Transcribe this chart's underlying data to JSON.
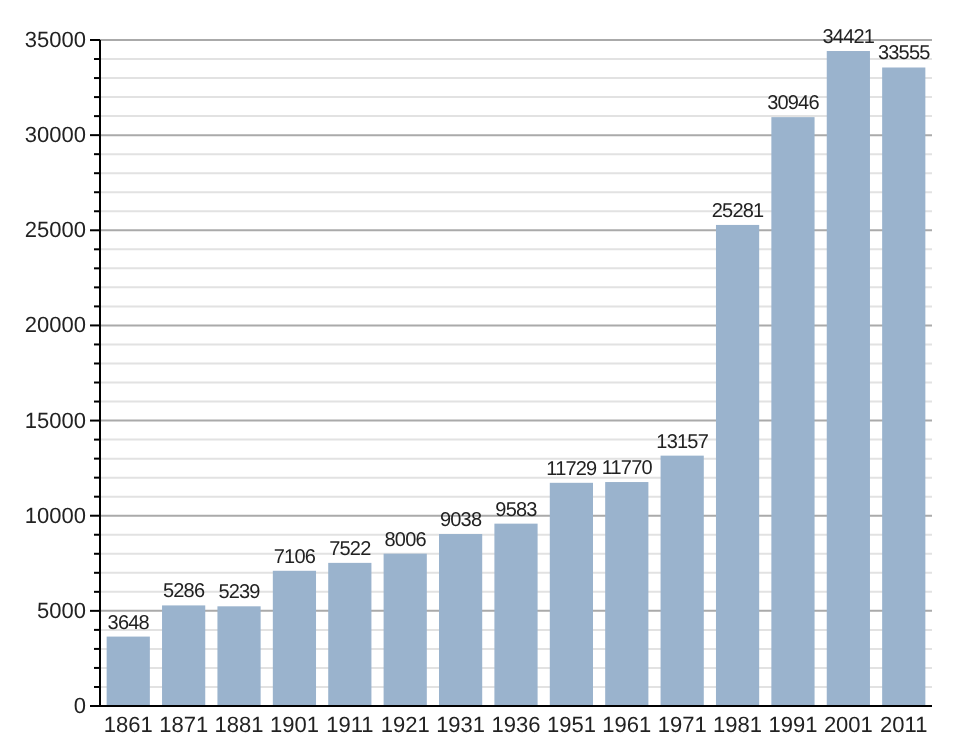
{
  "chart_data": {
    "type": "bar",
    "categories": [
      "1861",
      "1871",
      "1881",
      "1901",
      "1911",
      "1921",
      "1931",
      "1936",
      "1951",
      "1961",
      "1971",
      "1981",
      "1991",
      "2001",
      "2011"
    ],
    "values": [
      3648,
      5286,
      5239,
      7106,
      7522,
      8006,
      9038,
      9583,
      11729,
      11770,
      13157,
      25281,
      30946,
      34421,
      33555
    ],
    "color": "#9ab3cd",
    "ylim": [
      0,
      35000
    ],
    "yticks": [
      0,
      {
        "value": 1000,
        "label": null
      },
      {
        "value": 2000,
        "label": null
      },
      {
        "value": 3000,
        "label": null
      },
      {
        "value": 4000,
        "label": null
      },
      5000,
      {
        "value": 6000,
        "label": null
      },
      {
        "value": 7000,
        "label": null
      },
      {
        "value": 8000,
        "label": null
      },
      {
        "value": 9000,
        "label": null
      },
      10000,
      {
        "value": 11000,
        "label": null
      },
      {
        "value": 12000,
        "label": null
      },
      {
        "value": 13000,
        "label": null
      },
      {
        "value": 14000,
        "label": null
      },
      15000,
      {
        "value": 16000,
        "label": null
      },
      {
        "value": 17000,
        "label": null
      },
      {
        "value": 18000,
        "label": null
      },
      {
        "value": 19000,
        "label": null
      },
      20000,
      {
        "value": 21000,
        "label": null
      },
      {
        "value": 22000,
        "label": null
      },
      {
        "value": 23000,
        "label": null
      },
      {
        "value": 24000,
        "label": null
      },
      25000,
      {
        "value": 26000,
        "label": null
      },
      {
        "value": 27000,
        "label": null
      },
      {
        "value": 28000,
        "label": null
      },
      {
        "value": 29000,
        "label": null
      },
      30000,
      {
        "value": 31000,
        "label": null
      },
      {
        "value": 32000,
        "label": null
      },
      {
        "value": 33000,
        "label": null
      },
      {
        "value": 34000,
        "label": null
      },
      35000
    ],
    "grid": true,
    "data_labels": true
  }
}
